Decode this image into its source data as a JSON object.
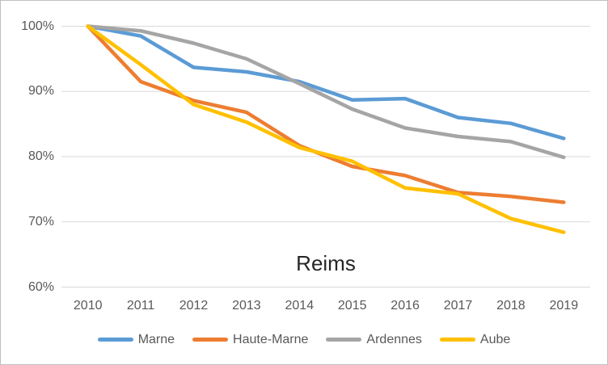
{
  "chart_data": {
    "type": "line",
    "title": "Reims",
    "x": [
      "2010",
      "2011",
      "2012",
      "2013",
      "2014",
      "2015",
      "2016",
      "2017",
      "2018",
      "2019"
    ],
    "series": [
      {
        "name": "Marne",
        "color": "#5B9BD5",
        "values": [
          100,
          98.5,
          93.7,
          93.0,
          91.5,
          88.7,
          88.9,
          86.0,
          85.1,
          82.8
        ]
      },
      {
        "name": "Haute-Marne",
        "color": "#ED7D31",
        "values": [
          100,
          91.5,
          88.6,
          86.8,
          81.7,
          78.5,
          77.1,
          74.5,
          73.9,
          73.0
        ]
      },
      {
        "name": "Ardennes",
        "color": "#A5A5A5",
        "values": [
          100,
          99.3,
          97.4,
          95.0,
          91.2,
          87.3,
          84.4,
          83.1,
          82.3,
          79.9
        ]
      },
      {
        "name": "Aube",
        "color": "#FFC000",
        "values": [
          100,
          94.1,
          88.0,
          85.3,
          81.4,
          79.3,
          75.2,
          74.3,
          70.5,
          68.4
        ]
      }
    ],
    "yticks": [
      {
        "label": "100%",
        "value": 100
      },
      {
        "label": "90%",
        "value": 90
      },
      {
        "label": "80%",
        "value": 80
      },
      {
        "label": "70%",
        "value": 70
      },
      {
        "label": "60%",
        "value": 60
      }
    ],
    "ylim": [
      60,
      100
    ],
    "grid": true,
    "legend_position": "bottom"
  },
  "colors": {
    "grid": "#D9D9D9",
    "tick_text": "#595959",
    "title_text": "#262626",
    "frame_border": "#BFBFBF",
    "background": "#FFFFFF"
  }
}
